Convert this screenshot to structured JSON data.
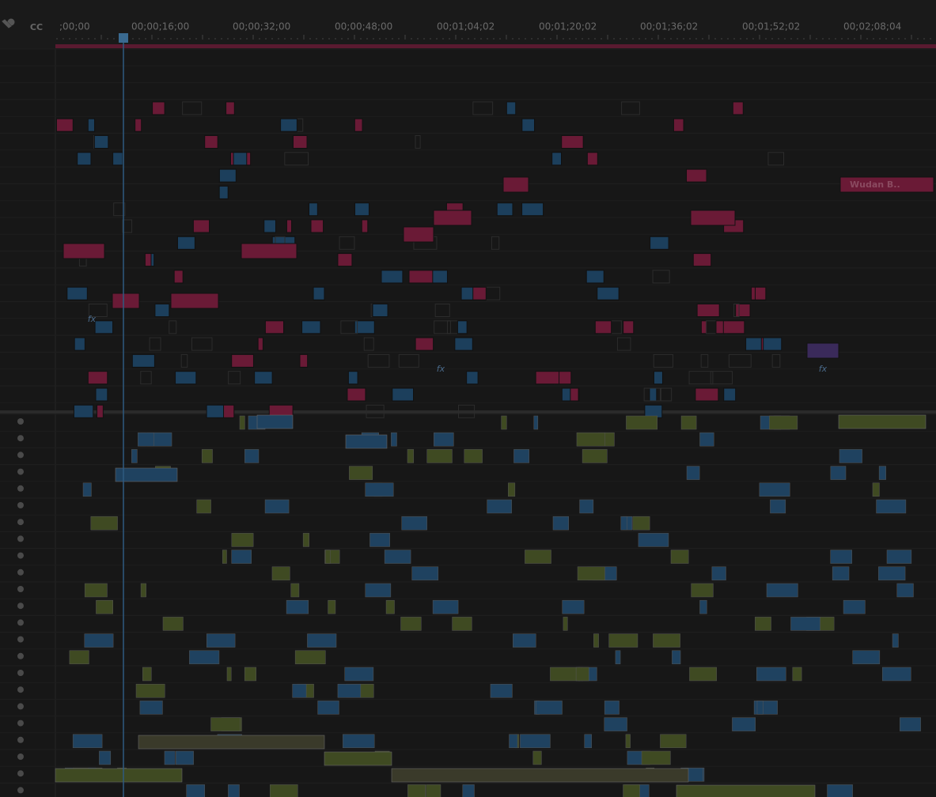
{
  "toolbar": {
    "captions": "CC"
  },
  "ruler": {
    "timecodes": [
      ";00;00",
      "00;00;16;00",
      "00;00;32;00",
      "00;00;48;00",
      "00;01;04;02",
      "00;01;20;02",
      "00;01;36;02",
      "00;01;52;02",
      "00;02;08;04"
    ]
  },
  "clips": {
    "title_clip": "Wudan B..",
    "effects": [
      "fx",
      "fx",
      "fx"
    ]
  }
}
